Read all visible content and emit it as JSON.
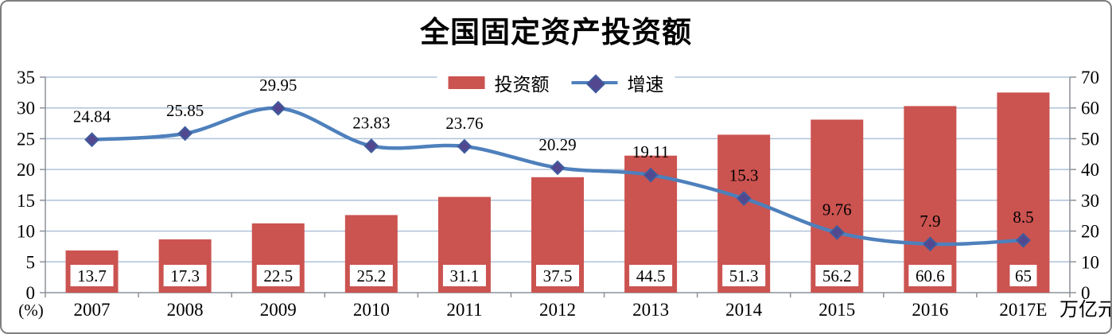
{
  "chart_data": {
    "type": "combo-bar-line",
    "title": "全国固定资产投资额",
    "categories": [
      "2007",
      "2008",
      "2009",
      "2010",
      "2011",
      "2012",
      "2013",
      "2014",
      "2015",
      "2016",
      "2017E"
    ],
    "series": [
      {
        "name": "投资额",
        "type": "bar",
        "axis": "right",
        "unit": "万亿元",
        "color": "#CB5350",
        "values": [
          13.7,
          17.3,
          22.5,
          25.2,
          31.1,
          37.5,
          44.5,
          51.3,
          56.2,
          60.6,
          65
        ]
      },
      {
        "name": "增速",
        "type": "line",
        "axis": "left",
        "unit": "%",
        "color": "#4E80BC",
        "marker_color": "#53488F",
        "marker_border": "#3E5C9E",
        "values": [
          24.84,
          25.85,
          29.95,
          23.83,
          23.76,
          20.29,
          19.11,
          15.3,
          9.76,
          7.9,
          8.5
        ]
      }
    ],
    "left_axis": {
      "label": "(%)",
      "min": 0,
      "max": 35,
      "step": 5,
      "ticks": [
        "0",
        "5",
        "10",
        "15",
        "20",
        "25",
        "30",
        "35"
      ]
    },
    "right_axis": {
      "label": "万亿元",
      "min": 0,
      "max": 70,
      "step": 10,
      "ticks": [
        "0",
        "10",
        "20",
        "30",
        "40",
        "50",
        "60",
        "70"
      ]
    },
    "grid": true,
    "gridline_color": "#AFC2DA",
    "axis_line_color": "#8C9099",
    "legend_position": "top-center"
  }
}
